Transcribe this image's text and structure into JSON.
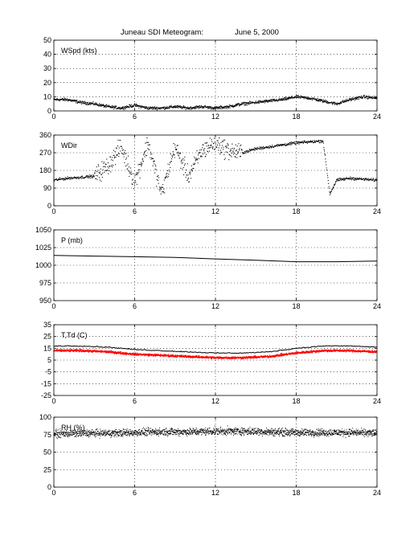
{
  "title_left": "Juneau SDI Meteogram:",
  "title_right": "June  5, 2000",
  "chart_data": [
    {
      "type": "scatter",
      "ylabel": "WSpd (kts)",
      "ylim": [
        0,
        50
      ],
      "yticks": [
        0,
        10,
        20,
        30,
        40,
        50
      ],
      "xlim": [
        0,
        24
      ],
      "xticks": [
        0,
        6,
        12,
        18,
        24
      ],
      "grid": true,
      "series": [
        {
          "color": "#000000",
          "x": [
            0,
            1,
            2,
            3,
            4,
            5,
            6,
            7,
            8,
            9,
            10,
            11,
            12,
            13,
            14,
            15,
            16,
            17,
            18,
            19,
            20,
            21,
            22,
            23,
            24
          ],
          "y": [
            8,
            8,
            6,
            5,
            3,
            2,
            4,
            2,
            2,
            3,
            2,
            3,
            2,
            3,
            5,
            6,
            7,
            8,
            10,
            9,
            7,
            5,
            8,
            10,
            9
          ]
        }
      ]
    },
    {
      "type": "scatter",
      "ylabel": "WDir",
      "ylim": [
        0,
        360
      ],
      "yticks": [
        0,
        90,
        180,
        270,
        360
      ],
      "xlim": [
        0,
        24
      ],
      "xticks": [
        0,
        6,
        12,
        18,
        24
      ],
      "grid": true,
      "series": [
        {
          "color": "#000000",
          "x": [
            0,
            1,
            2,
            3,
            4,
            5,
            6,
            7,
            8,
            9,
            10,
            11,
            12,
            13,
            14,
            15,
            16,
            17,
            18,
            19,
            20,
            20.5,
            21,
            22,
            23,
            24
          ],
          "y": [
            130,
            140,
            145,
            150,
            200,
            300,
            120,
            320,
            60,
            300,
            150,
            280,
            320,
            280,
            270,
            290,
            300,
            310,
            320,
            325,
            330,
            60,
            130,
            140,
            135,
            130
          ]
        }
      ]
    },
    {
      "type": "line",
      "ylabel": "P (mb)",
      "ylim": [
        950,
        1050
      ],
      "yticks": [
        950,
        975,
        1000,
        1025,
        1050
      ],
      "xlim": [
        0,
        24
      ],
      "xticks": [
        0,
        6,
        12,
        18,
        24
      ],
      "grid": true,
      "series": [
        {
          "color": "#000000",
          "x": [
            0,
            3,
            6,
            9,
            12,
            15,
            18,
            21,
            24
          ],
          "y": [
            1014,
            1013,
            1012,
            1011,
            1009,
            1007,
            1005,
            1005,
            1006
          ]
        }
      ]
    },
    {
      "type": "line",
      "ylabel": "T,Td (C)",
      "ylim": [
        -25,
        35
      ],
      "yticks": [
        -25,
        -15,
        -5,
        5,
        15,
        25,
        35
      ],
      "xlim": [
        0,
        24
      ],
      "xticks": [
        0,
        6,
        12,
        18,
        24
      ],
      "grid": true,
      "series": [
        {
          "color": "#000000",
          "x": [
            0,
            2,
            4,
            6,
            8,
            10,
            12,
            14,
            16,
            18,
            20,
            22,
            24
          ],
          "y": [
            17,
            17,
            16,
            14,
            13,
            12,
            11,
            11,
            12,
            15,
            17,
            17,
            16
          ]
        },
        {
          "color": "#ff0000",
          "x": [
            0,
            2,
            4,
            6,
            8,
            10,
            12,
            14,
            16,
            18,
            20,
            22,
            24
          ],
          "y": [
            13,
            13,
            12,
            10,
            9,
            8,
            7,
            7,
            8,
            11,
            13,
            13,
            12
          ]
        }
      ]
    },
    {
      "type": "scatter",
      "ylabel": "RH (%)",
      "ylim": [
        0,
        100
      ],
      "yticks": [
        0,
        25,
        50,
        75,
        100
      ],
      "xlim": [
        0,
        24
      ],
      "xticks": [
        0,
        6,
        12,
        18,
        24
      ],
      "grid": true,
      "series": [
        {
          "color": "#000000",
          "x": [
            0,
            2,
            4,
            6,
            8,
            10,
            12,
            14,
            16,
            18,
            20,
            22,
            24
          ],
          "y": [
            76,
            77,
            77,
            78,
            79,
            79,
            80,
            80,
            79,
            78,
            78,
            78,
            77
          ]
        }
      ]
    }
  ]
}
